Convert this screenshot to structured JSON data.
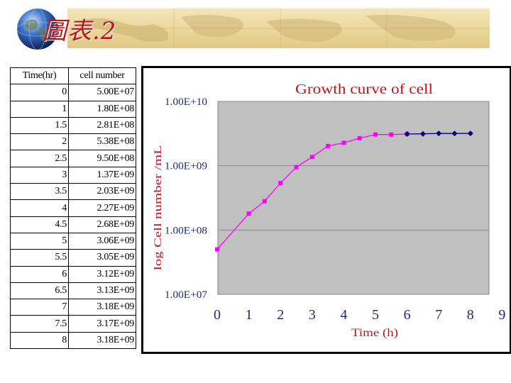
{
  "slide": {
    "title": "圖表.2"
  },
  "table": {
    "headers": [
      "Time(hr)",
      "cell number"
    ],
    "rows": [
      [
        "0",
        "5.00E+07"
      ],
      [
        "1",
        "1.80E+08"
      ],
      [
        "1.5",
        "2.81E+08"
      ],
      [
        "2",
        "5.38E+08"
      ],
      [
        "2.5",
        "9.50E+08"
      ],
      [
        "3",
        "1.37E+09"
      ],
      [
        "3.5",
        "2.03E+09"
      ],
      [
        "4",
        "2.27E+09"
      ],
      [
        "4.5",
        "2.68E+09"
      ],
      [
        "5",
        "3.06E+09"
      ],
      [
        "5.5",
        "3.05E+09"
      ],
      [
        "6",
        "3.12E+09"
      ],
      [
        "6.5",
        "3.13E+09"
      ],
      [
        "7",
        "3.18E+09"
      ],
      [
        "7.5",
        "3.17E+09"
      ],
      [
        "8",
        "3.18E+09"
      ]
    ]
  },
  "colors": {
    "title_red": "#c0141c",
    "plot_area": "#c0c0c0",
    "series_magenta": "#ff00ff",
    "series_navy": "#000080",
    "tick_text": "#1a2a8a"
  },
  "chart_data": {
    "type": "line",
    "title": "Growth curve  of cell",
    "xlabel": "Time (h)",
    "ylabel": "log Cell number /mL",
    "y_scale": "log",
    "xlim": [
      0,
      9
    ],
    "ylim": [
      10000000,
      10000000000
    ],
    "x_ticks": [
      "0",
      "1",
      "2",
      "3",
      "4",
      "5",
      "6",
      "7",
      "8",
      "9"
    ],
    "y_ticks": [
      "1.00E+07",
      "1.00E+08",
      "1.00E+09",
      "1.00E+10"
    ],
    "y_tick_values": [
      10000000,
      100000000,
      1000000000,
      10000000000
    ],
    "grid": "horizontal",
    "series": [
      {
        "color": "#ff00ff",
        "marker": "square",
        "x": [
          0,
          1,
          1.5,
          2,
          2.5,
          3,
          3.5,
          4,
          4.5,
          5,
          5.5,
          6
        ],
        "values": [
          50000000,
          180000000,
          281000000,
          538000000,
          950000000,
          1370000000,
          2030000000,
          2270000000,
          2680000000,
          3060000000,
          3050000000,
          3120000000
        ]
      },
      {
        "color": "#000080",
        "marker": "diamond",
        "x": [
          6,
          6.5,
          7,
          7.5,
          8
        ],
        "values": [
          3120000000,
          3130000000,
          3180000000,
          3170000000,
          3180000000
        ]
      }
    ]
  }
}
